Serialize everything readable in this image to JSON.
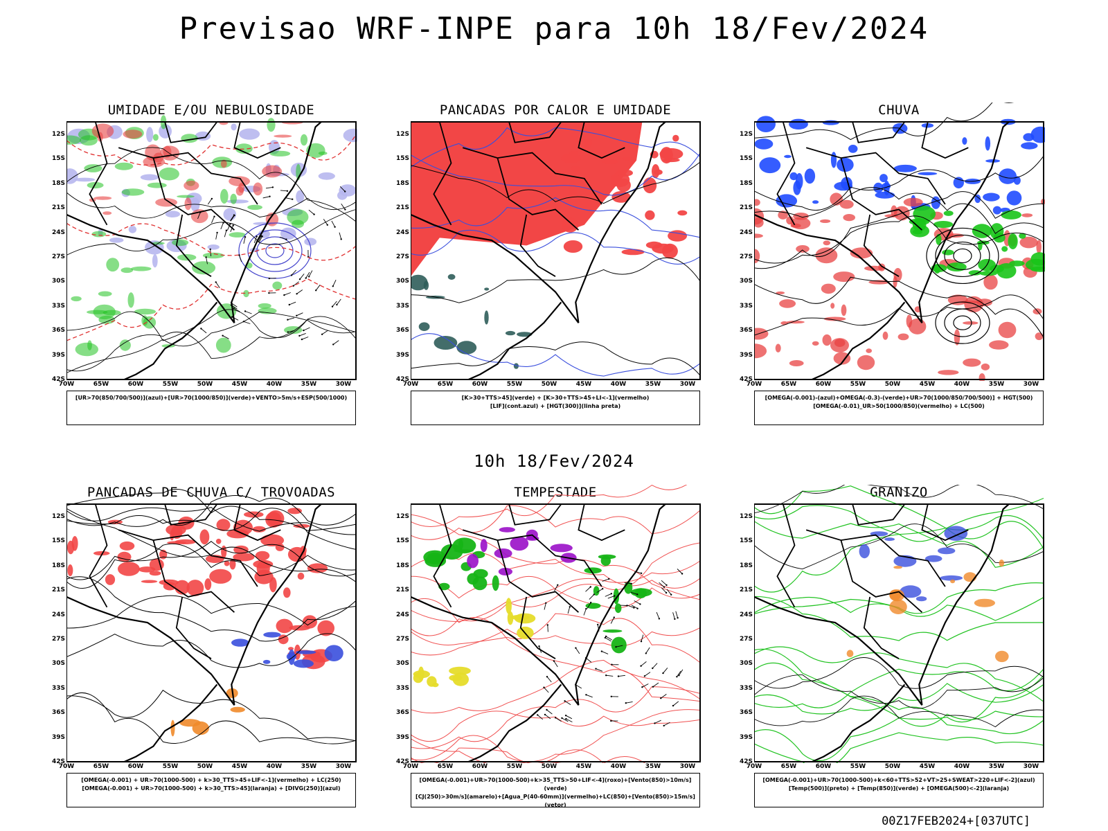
{
  "header": {
    "title": "Previsao WRF-INPE  para 10h 18/Fev/2024"
  },
  "mid_title": "10h 18/Fev/2024",
  "footer": "00Z17FEB2024+[037UTC]",
  "latitude_labels": [
    "12S",
    "15S",
    "18S",
    "21S",
    "24S",
    "27S",
    "30S",
    "33S",
    "36S",
    "39S",
    "42S"
  ],
  "longitude_labels": [
    "70W",
    "65W",
    "60W",
    "55W",
    "50W",
    "45W",
    "40W",
    "35W",
    "30W"
  ],
  "panels": [
    {
      "title": "UMIDADE E/OU NEBULOSIDADE",
      "legend": [
        "[UR>70(850/700/500)](azul)+[UR>70(1000/850)](verde)+VENTO>5m/s+ESP(500/1000)"
      ]
    },
    {
      "title": "PANCADAS POR CALOR E UMIDADE",
      "legend": [
        "[K>30+TTS>45](verde) + [K>30+TTS>45+LI<-1](vermelho)",
        "[LIF](cont.azul) + [HGT(300)](linha preta)"
      ]
    },
    {
      "title": "CHUVA",
      "legend": [
        "[OMEGA(-0.001)-(azul)+OMEGA(-0.3)-(verde)+UR>70(1000/850/700/500)] + HGT(500)",
        "[OMEGA(-0.01)_UR>50(1000/850)(vermelho) + LC(500)"
      ]
    },
    {
      "title": "PANCADAS DE CHUVA C/ TROVOADAS",
      "legend": [
        "[OMEGA(-0.001) + UR>70(1000-500) + k>30_TTS>45+LIF<-1](vermelho) + LC(250)",
        "[OMEGA(-0.001) + UR>70(1000-500) + k>30_TTS>45](laranja) + [DIVG(250)](azul)"
      ]
    },
    {
      "title": "TEMPESTADE",
      "legend": [
        "[OMEGA(-0.001)+UR>70(1000-500)+k>35_TTS>50+LIF<-4](roxo)+[Vento(850)>10m/s](verde)",
        "[CJ(250)>30m/s](amarelo)+[Agua_P(40-60mm)](vermelho)+LC(850)+[Vento(850)>15m/s](vetor)"
      ]
    },
    {
      "title": "GRANIZO",
      "legend": [
        "[OMEGA(-0.001)+UR>70(1000-500)+k<60+TTS>52+VT>25+SWEAT>220+LIF<-2](azul)",
        "[Temp(500)](preto) + [Temp(850)](verde) + [OMEGA(500)<-2](laranja)"
      ]
    }
  ]
}
